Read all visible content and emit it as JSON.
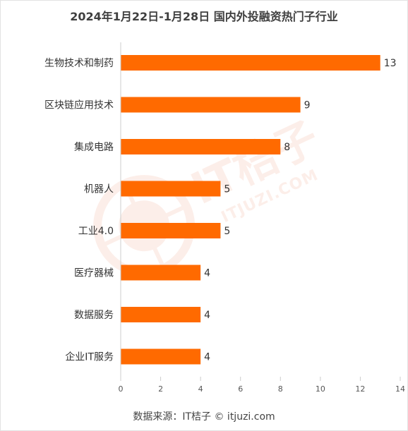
{
  "title": "2024年1月22日-1月28日 国内外投融资热门子行业",
  "source": "数据来源：IT桔子 © itjuzi.com",
  "watermark": {
    "logo_text": "IT桔子",
    "url": "ITJUZI.COM"
  },
  "colors": {
    "bar": "#ff6a00",
    "axis": "#cccccc",
    "text": "#333333",
    "watermark": "#e8541e"
  },
  "chart_data": {
    "type": "bar",
    "orientation": "horizontal",
    "title": "2024年1月22日-1月28日 国内外投融资热门子行业",
    "categories": [
      "生物技术和制药",
      "区块链应用技术",
      "集成电路",
      "机器人",
      "工业4.0",
      "医疗器械",
      "数据服务",
      "企业IT服务"
    ],
    "values": [
      13,
      9,
      8,
      5,
      5,
      4,
      4,
      4
    ],
    "xlim": [
      0,
      14
    ],
    "xticks": [
      0,
      2,
      4,
      6,
      8,
      10,
      12,
      14
    ],
    "grid": false,
    "legend": "none"
  }
}
